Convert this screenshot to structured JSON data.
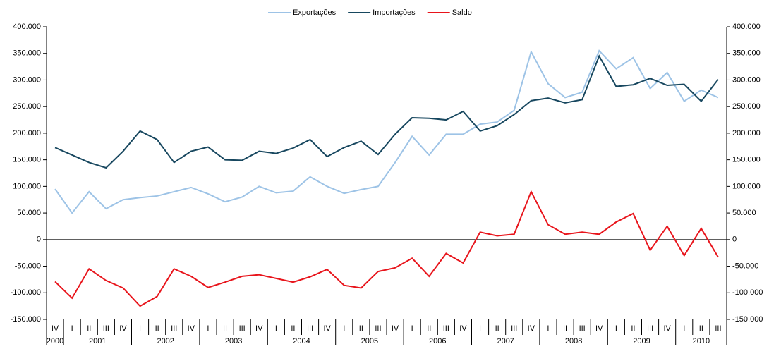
{
  "chart_data": {
    "type": "line",
    "categories": [
      "IV",
      "I",
      "II",
      "III",
      "IV",
      "I",
      "II",
      "III",
      "IV",
      "I",
      "II",
      "III",
      "IV",
      "I",
      "II",
      "III",
      "IV",
      "I",
      "II",
      "III",
      "IV",
      "I",
      "II",
      "III",
      "IV",
      "I",
      "II",
      "III",
      "IV",
      "I",
      "II",
      "III",
      "IV",
      "I",
      "II",
      "III",
      "IV",
      "I",
      "II",
      "III"
    ],
    "years": [
      "2000",
      "2001",
      null,
      null,
      null,
      "2002",
      null,
      null,
      null,
      "2003",
      null,
      null,
      null,
      "2004",
      null,
      null,
      null,
      "2005",
      null,
      null,
      null,
      "2006",
      null,
      null,
      null,
      "2007",
      null,
      null,
      null,
      "2008",
      null,
      null,
      null,
      "2009",
      null,
      null,
      null,
      "2010",
      null,
      null
    ],
    "series": [
      {
        "name": "Exportações",
        "color": "#9dc3e6",
        "values": [
          95000,
          50000,
          90000,
          58000,
          75000,
          79000,
          82000,
          90000,
          98000,
          86000,
          71000,
          80000,
          100000,
          88000,
          91000,
          118000,
          100000,
          87000,
          94000,
          100000,
          145000,
          194000,
          159000,
          198000,
          198000,
          217000,
          221000,
          243000,
          353000,
          293000,
          267000,
          277000,
          355000,
          321000,
          342000,
          284000,
          314000,
          260000,
          281000,
          267000
        ]
      },
      {
        "name": "Importações",
        "color": "#17475f",
        "values": [
          173000,
          159000,
          145000,
          135000,
          166000,
          204000,
          188000,
          145000,
          166000,
          174000,
          150000,
          149000,
          166000,
          162000,
          172000,
          188000,
          156000,
          173000,
          185000,
          160000,
          198000,
          229000,
          228000,
          225000,
          241000,
          204000,
          214000,
          235000,
          261000,
          266000,
          257000,
          263000,
          345000,
          288000,
          291000,
          303000,
          290000,
          292000,
          260000,
          301000
        ]
      },
      {
        "name": "Saldo",
        "color": "#e8141b",
        "values": [
          -79000,
          -110000,
          -55000,
          -77000,
          -91000,
          -125000,
          -107000,
          -55000,
          -69000,
          -90000,
          -80000,
          -69000,
          -66000,
          -73000,
          -80000,
          -70000,
          -56000,
          -86000,
          -91000,
          -60000,
          -53000,
          -35000,
          -69000,
          -26000,
          -44000,
          14000,
          7000,
          10000,
          90000,
          28000,
          10000,
          14000,
          10000,
          33000,
          49000,
          -20000,
          25000,
          -30000,
          21000,
          -33000
        ]
      }
    ],
    "ylim": [
      -150000,
      400000
    ],
    "yticks": [
      {
        "value": -150000,
        "label": "-150.000"
      },
      {
        "value": -100000,
        "label": "-100.000"
      },
      {
        "value": -50000,
        "label": "-50.000"
      },
      0,
      {
        "value": 50000,
        "label": "50.000"
      },
      {
        "value": 100000,
        "label": "100.000"
      },
      {
        "value": 150000,
        "label": "150.000"
      },
      {
        "value": 200000,
        "label": "200.000"
      },
      {
        "value": 250000,
        "label": "250.000"
      },
      {
        "value": 300000,
        "label": "300.000"
      },
      {
        "value": 350000,
        "label": "350.000"
      },
      {
        "value": 400000,
        "label": "400.000"
      }
    ],
    "legend": "top"
  }
}
